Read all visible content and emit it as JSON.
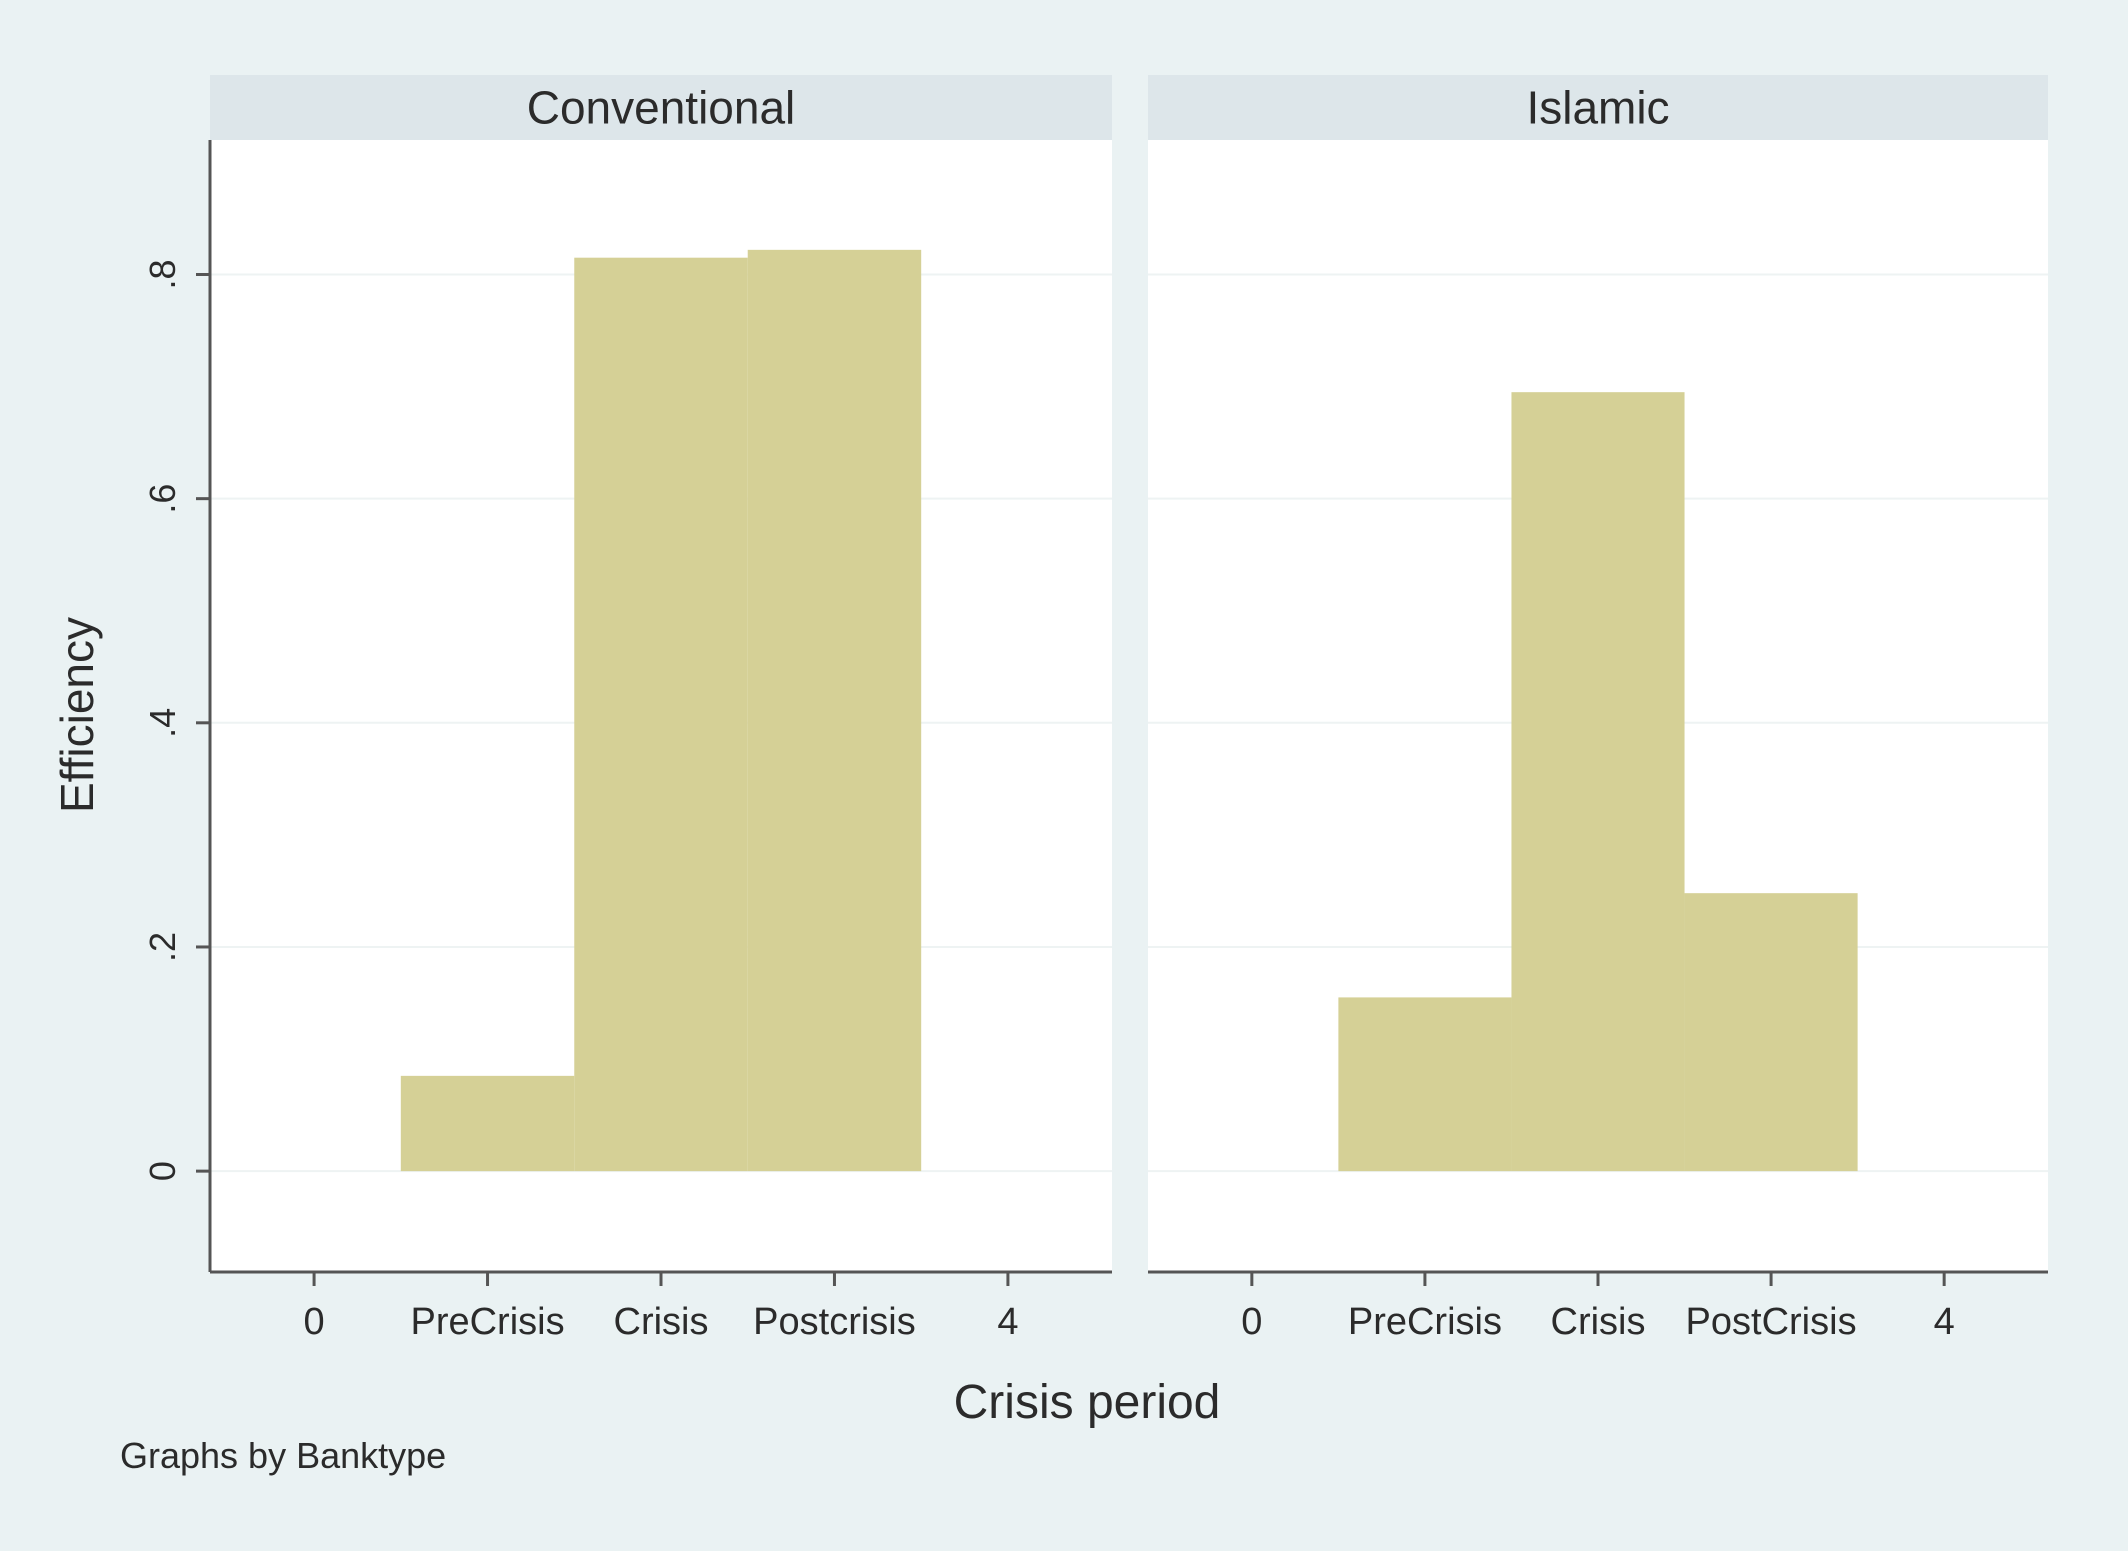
{
  "chart_data": {
    "type": "bar",
    "layout": "facet",
    "ylabel": "Efficiency",
    "xlabel": "Crisis period",
    "note": "Graphs by Banktype",
    "ylim": [
      -0.09,
      0.92
    ],
    "yticks": [
      {
        "value": 0,
        "label": "0"
      },
      {
        "value": 0.2,
        "label": ".2"
      },
      {
        "value": 0.4,
        "label": ".4"
      },
      {
        "value": 0.6,
        "label": ".6"
      },
      {
        "value": 0.8,
        "label": ".8"
      }
    ],
    "xlim": [
      -0.6,
      4.6
    ],
    "grid": true,
    "colors": {
      "outer_background": "#eaf2f3",
      "plot_background": "#ffffff",
      "strip_background": "#dde6ea",
      "bar_fill": "#d5d096",
      "axis": "#555555",
      "grid": "#eef3f3"
    },
    "panels": [
      {
        "title": "Conventional",
        "xticks": [
          {
            "value": 0,
            "label": "0"
          },
          {
            "value": 1,
            "label": "PreCrisis"
          },
          {
            "value": 2,
            "label": "Crisis"
          },
          {
            "value": 3,
            "label": "Postcrisis"
          },
          {
            "value": 4,
            "label": "4"
          }
        ],
        "bars": [
          {
            "x": 1,
            "category": "PreCrisis",
            "value": 0.085
          },
          {
            "x": 2,
            "category": "Crisis",
            "value": 0.815
          },
          {
            "x": 3,
            "category": "Postcrisis",
            "value": 0.822
          }
        ]
      },
      {
        "title": "Islamic",
        "xticks": [
          {
            "value": 0,
            "label": "0"
          },
          {
            "value": 1,
            "label": "PreCrisis"
          },
          {
            "value": 2,
            "label": "Crisis"
          },
          {
            "value": 3,
            "label": "PostCrisis"
          },
          {
            "value": 4,
            "label": "4"
          }
        ],
        "bars": [
          {
            "x": 1,
            "category": "PreCrisis",
            "value": 0.155
          },
          {
            "x": 2,
            "category": "Crisis",
            "value": 0.695
          },
          {
            "x": 3,
            "category": "PostCrisis",
            "value": 0.248
          }
        ]
      }
    ]
  }
}
